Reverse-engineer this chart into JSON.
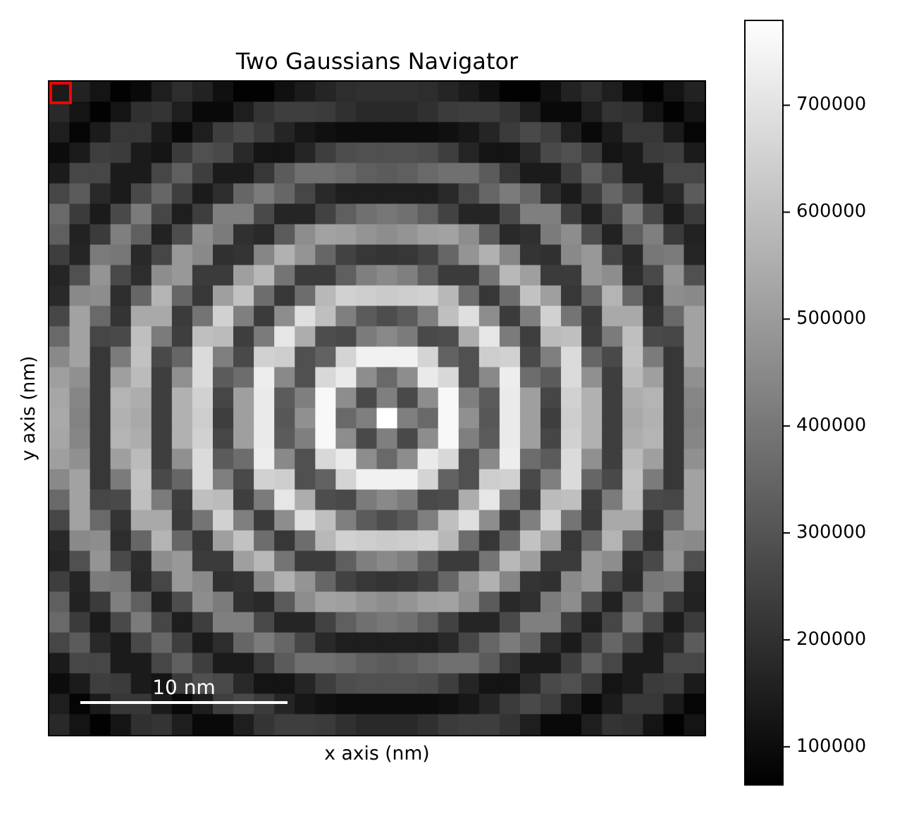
{
  "chart_data": {
    "type": "heatmap",
    "title": "Two Gaussians Navigator",
    "xlabel": "x axis (nm)",
    "ylabel": "y axis (nm)",
    "annotations": [
      "10 nm"
    ],
    "categories": [
      null,
      null,
      null,
      null,
      null,
      null,
      null,
      null,
      null,
      null,
      null,
      null,
      null,
      null,
      null,
      null,
      null,
      null,
      null,
      null,
      null,
      null,
      null,
      null,
      null,
      null,
      null,
      null,
      null,
      null,
      null,
      null
    ],
    "y_categories": [
      null,
      null,
      null,
      null,
      null,
      null,
      null,
      null,
      null,
      null,
      null,
      null,
      null,
      null,
      null,
      null,
      null,
      null,
      null,
      null,
      null,
      null,
      null,
      null,
      null,
      null,
      null,
      null,
      null,
      null,
      null,
      null
    ],
    "clim": [
      65000,
      780000
    ],
    "cticks": [
      100000,
      200000,
      300000,
      400000,
      500000,
      600000,
      700000
    ],
    "cells": [
      [
        140000,
        160000,
        120000,
        70000,
        90000,
        150000,
        190000,
        160000,
        110000,
        70000,
        70000,
        110000,
        140000,
        170000,
        190000,
        200000,
        200000,
        200000,
        190000,
        170000,
        140000,
        110000,
        70000,
        70000,
        110000,
        160000,
        190000,
        150000,
        90000,
        70000,
        120000,
        160000
      ],
      [
        180000,
        120000,
        70000,
        120000,
        200000,
        210000,
        150000,
        90000,
        90000,
        150000,
        210000,
        240000,
        240000,
        230000,
        200000,
        180000,
        180000,
        180000,
        200000,
        230000,
        240000,
        240000,
        210000,
        150000,
        90000,
        90000,
        150000,
        210000,
        200000,
        120000,
        70000,
        120000
      ],
      [
        150000,
        80000,
        140000,
        220000,
        220000,
        140000,
        90000,
        150000,
        240000,
        270000,
        230000,
        170000,
        130000,
        110000,
        100000,
        100000,
        100000,
        100000,
        100000,
        110000,
        130000,
        170000,
        230000,
        270000,
        240000,
        150000,
        90000,
        140000,
        220000,
        220000,
        140000,
        80000
      ],
      [
        100000,
        140000,
        240000,
        230000,
        140000,
        120000,
        230000,
        290000,
        270000,
        180000,
        120000,
        120000,
        170000,
        240000,
        280000,
        290000,
        290000,
        290000,
        280000,
        240000,
        170000,
        120000,
        120000,
        180000,
        270000,
        290000,
        230000,
        120000,
        140000,
        230000,
        240000,
        140000
      ],
      [
        140000,
        260000,
        260000,
        140000,
        140000,
        260000,
        330000,
        240000,
        140000,
        140000,
        220000,
        320000,
        380000,
        380000,
        360000,
        330000,
        320000,
        330000,
        360000,
        380000,
        380000,
        320000,
        220000,
        140000,
        140000,
        240000,
        330000,
        260000,
        140000,
        140000,
        260000,
        260000
      ],
      [
        260000,
        320000,
        180000,
        140000,
        270000,
        350000,
        240000,
        140000,
        190000,
        350000,
        410000,
        350000,
        260000,
        180000,
        150000,
        150000,
        150000,
        150000,
        150000,
        180000,
        260000,
        350000,
        410000,
        350000,
        190000,
        140000,
        240000,
        350000,
        270000,
        140000,
        180000,
        320000
      ],
      [
        360000,
        230000,
        140000,
        270000,
        410000,
        260000,
        150000,
        240000,
        420000,
        420000,
        270000,
        170000,
        170000,
        250000,
        330000,
        380000,
        400000,
        380000,
        330000,
        250000,
        170000,
        170000,
        270000,
        420000,
        420000,
        240000,
        150000,
        260000,
        410000,
        270000,
        140000,
        230000
      ],
      [
        330000,
        160000,
        230000,
        420000,
        330000,
        160000,
        280000,
        460000,
        410000,
        200000,
        180000,
        320000,
        460000,
        520000,
        510000,
        480000,
        460000,
        480000,
        510000,
        520000,
        460000,
        320000,
        180000,
        200000,
        410000,
        460000,
        280000,
        160000,
        330000,
        420000,
        230000,
        160000
      ],
      [
        240000,
        170000,
        410000,
        400000,
        180000,
        260000,
        490000,
        450000,
        200000,
        210000,
        440000,
        560000,
        480000,
        350000,
        250000,
        220000,
        210000,
        220000,
        250000,
        350000,
        480000,
        560000,
        440000,
        210000,
        200000,
        450000,
        490000,
        260000,
        180000,
        400000,
        410000,
        170000
      ],
      [
        170000,
        290000,
        480000,
        270000,
        190000,
        460000,
        490000,
        230000,
        230000,
        510000,
        580000,
        390000,
        230000,
        230000,
        330000,
        420000,
        450000,
        420000,
        330000,
        230000,
        230000,
        390000,
        580000,
        510000,
        230000,
        230000,
        490000,
        460000,
        190000,
        270000,
        480000,
        290000
      ],
      [
        180000,
        450000,
        460000,
        190000,
        350000,
        570000,
        350000,
        220000,
        510000,
        610000,
        370000,
        220000,
        370000,
        580000,
        650000,
        640000,
        630000,
        640000,
        650000,
        580000,
        370000,
        220000,
        370000,
        610000,
        510000,
        220000,
        350000,
        570000,
        350000,
        190000,
        460000,
        450000
      ],
      [
        260000,
        520000,
        360000,
        210000,
        540000,
        540000,
        230000,
        390000,
        650000,
        420000,
        230000,
        460000,
        690000,
        600000,
        420000,
        320000,
        280000,
        320000,
        420000,
        600000,
        690000,
        460000,
        230000,
        420000,
        650000,
        390000,
        230000,
        540000,
        540000,
        210000,
        360000,
        520000
      ],
      [
        360000,
        520000,
        260000,
        270000,
        600000,
        410000,
        240000,
        600000,
        590000,
        240000,
        410000,
        710000,
        550000,
        280000,
        270000,
        410000,
        450000,
        410000,
        270000,
        280000,
        550000,
        710000,
        410000,
        240000,
        590000,
        600000,
        240000,
        410000,
        600000,
        270000,
        260000,
        520000
      ],
      [
        450000,
        520000,
        220000,
        410000,
        610000,
        270000,
        350000,
        680000,
        420000,
        270000,
        650000,
        640000,
        290000,
        340000,
        660000,
        740000,
        740000,
        740000,
        660000,
        340000,
        290000,
        640000,
        650000,
        270000,
        420000,
        680000,
        350000,
        270000,
        610000,
        410000,
        220000,
        520000
      ],
      [
        510000,
        470000,
        220000,
        510000,
        590000,
        240000,
        470000,
        680000,
        320000,
        370000,
        730000,
        450000,
        290000,
        670000,
        720000,
        460000,
        360000,
        460000,
        720000,
        670000,
        290000,
        450000,
        730000,
        370000,
        320000,
        680000,
        470000,
        240000,
        590000,
        510000,
        220000,
        470000
      ],
      [
        530000,
        440000,
        220000,
        570000,
        550000,
        240000,
        560000,
        650000,
        260000,
        510000,
        720000,
        320000,
        420000,
        760000,
        460000,
        270000,
        420000,
        270000,
        460000,
        760000,
        420000,
        320000,
        720000,
        510000,
        260000,
        650000,
        560000,
        240000,
        550000,
        570000,
        220000,
        440000
      ],
      [
        540000,
        430000,
        220000,
        560000,
        540000,
        240000,
        560000,
        640000,
        240000,
        510000,
        720000,
        310000,
        470000,
        760000,
        360000,
        420000,
        780000,
        420000,
        360000,
        760000,
        470000,
        310000,
        720000,
        510000,
        240000,
        640000,
        560000,
        240000,
        540000,
        560000,
        220000,
        430000
      ],
      [
        530000,
        440000,
        220000,
        570000,
        550000,
        240000,
        560000,
        650000,
        260000,
        510000,
        720000,
        320000,
        420000,
        760000,
        460000,
        270000,
        420000,
        270000,
        460000,
        760000,
        420000,
        320000,
        720000,
        510000,
        260000,
        650000,
        560000,
        240000,
        550000,
        570000,
        220000,
        440000
      ],
      [
        510000,
        470000,
        220000,
        510000,
        590000,
        240000,
        470000,
        680000,
        320000,
        370000,
        730000,
        450000,
        290000,
        670000,
        720000,
        460000,
        360000,
        460000,
        720000,
        670000,
        290000,
        450000,
        730000,
        370000,
        320000,
        680000,
        470000,
        240000,
        590000,
        510000,
        220000,
        470000
      ],
      [
        450000,
        520000,
        220000,
        410000,
        610000,
        270000,
        350000,
        680000,
        420000,
        270000,
        650000,
        640000,
        290000,
        340000,
        660000,
        740000,
        740000,
        740000,
        660000,
        340000,
        290000,
        640000,
        650000,
        270000,
        420000,
        680000,
        350000,
        270000,
        610000,
        410000,
        220000,
        520000
      ],
      [
        360000,
        520000,
        260000,
        270000,
        600000,
        410000,
        240000,
        600000,
        590000,
        240000,
        410000,
        710000,
        550000,
        280000,
        270000,
        410000,
        450000,
        410000,
        270000,
        280000,
        550000,
        710000,
        410000,
        240000,
        590000,
        600000,
        240000,
        410000,
        600000,
        270000,
        260000,
        520000
      ],
      [
        260000,
        520000,
        360000,
        210000,
        540000,
        540000,
        230000,
        390000,
        650000,
        420000,
        230000,
        460000,
        690000,
        600000,
        420000,
        320000,
        280000,
        320000,
        420000,
        600000,
        690000,
        460000,
        230000,
        420000,
        650000,
        390000,
        230000,
        540000,
        540000,
        210000,
        360000,
        520000
      ],
      [
        180000,
        450000,
        460000,
        190000,
        350000,
        570000,
        350000,
        220000,
        510000,
        610000,
        370000,
        220000,
        370000,
        580000,
        650000,
        640000,
        630000,
        640000,
        650000,
        580000,
        370000,
        220000,
        370000,
        610000,
        510000,
        220000,
        350000,
        570000,
        350000,
        190000,
        460000,
        450000
      ],
      [
        170000,
        290000,
        480000,
        270000,
        190000,
        460000,
        490000,
        230000,
        230000,
        510000,
        580000,
        390000,
        230000,
        230000,
        330000,
        420000,
        450000,
        420000,
        330000,
        230000,
        230000,
        390000,
        580000,
        510000,
        230000,
        230000,
        490000,
        460000,
        190000,
        270000,
        480000,
        290000
      ],
      [
        240000,
        170000,
        410000,
        400000,
        180000,
        260000,
        490000,
        450000,
        200000,
        210000,
        440000,
        560000,
        480000,
        350000,
        250000,
        220000,
        210000,
        220000,
        250000,
        350000,
        480000,
        560000,
        440000,
        210000,
        200000,
        450000,
        490000,
        260000,
        180000,
        400000,
        410000,
        170000
      ],
      [
        330000,
        160000,
        230000,
        420000,
        330000,
        160000,
        280000,
        460000,
        410000,
        200000,
        180000,
        320000,
        460000,
        520000,
        510000,
        480000,
        460000,
        480000,
        510000,
        520000,
        460000,
        320000,
        180000,
        200000,
        410000,
        460000,
        280000,
        160000,
        330000,
        420000,
        230000,
        160000
      ],
      [
        360000,
        230000,
        140000,
        270000,
        410000,
        260000,
        150000,
        240000,
        420000,
        420000,
        270000,
        170000,
        170000,
        250000,
        330000,
        380000,
        400000,
        380000,
        330000,
        250000,
        170000,
        170000,
        270000,
        420000,
        420000,
        240000,
        150000,
        260000,
        410000,
        270000,
        140000,
        230000
      ],
      [
        260000,
        320000,
        180000,
        140000,
        270000,
        350000,
        240000,
        140000,
        190000,
        350000,
        410000,
        350000,
        260000,
        180000,
        150000,
        150000,
        150000,
        150000,
        150000,
        180000,
        260000,
        350000,
        410000,
        350000,
        190000,
        140000,
        240000,
        350000,
        270000,
        140000,
        180000,
        320000
      ],
      [
        140000,
        260000,
        260000,
        140000,
        140000,
        260000,
        330000,
        240000,
        140000,
        140000,
        220000,
        320000,
        380000,
        380000,
        360000,
        330000,
        320000,
        330000,
        360000,
        380000,
        380000,
        320000,
        220000,
        140000,
        140000,
        240000,
        330000,
        260000,
        140000,
        140000,
        260000,
        260000
      ],
      [
        100000,
        140000,
        240000,
        230000,
        140000,
        120000,
        230000,
        290000,
        270000,
        180000,
        120000,
        120000,
        170000,
        240000,
        280000,
        290000,
        290000,
        290000,
        280000,
        240000,
        170000,
        120000,
        120000,
        180000,
        270000,
        290000,
        230000,
        120000,
        140000,
        230000,
        240000,
        140000
      ],
      [
        150000,
        80000,
        140000,
        220000,
        220000,
        140000,
        90000,
        150000,
        240000,
        270000,
        230000,
        170000,
        130000,
        110000,
        100000,
        100000,
        100000,
        100000,
        100000,
        110000,
        130000,
        170000,
        230000,
        270000,
        240000,
        150000,
        90000,
        140000,
        220000,
        220000,
        140000,
        80000
      ],
      [
        180000,
        120000,
        70000,
        120000,
        200000,
        210000,
        150000,
        90000,
        90000,
        150000,
        210000,
        240000,
        240000,
        230000,
        200000,
        180000,
        180000,
        180000,
        200000,
        230000,
        240000,
        240000,
        210000,
        150000,
        90000,
        90000,
        150000,
        210000,
        200000,
        120000,
        70000,
        120000
      ]
    ]
  }
}
